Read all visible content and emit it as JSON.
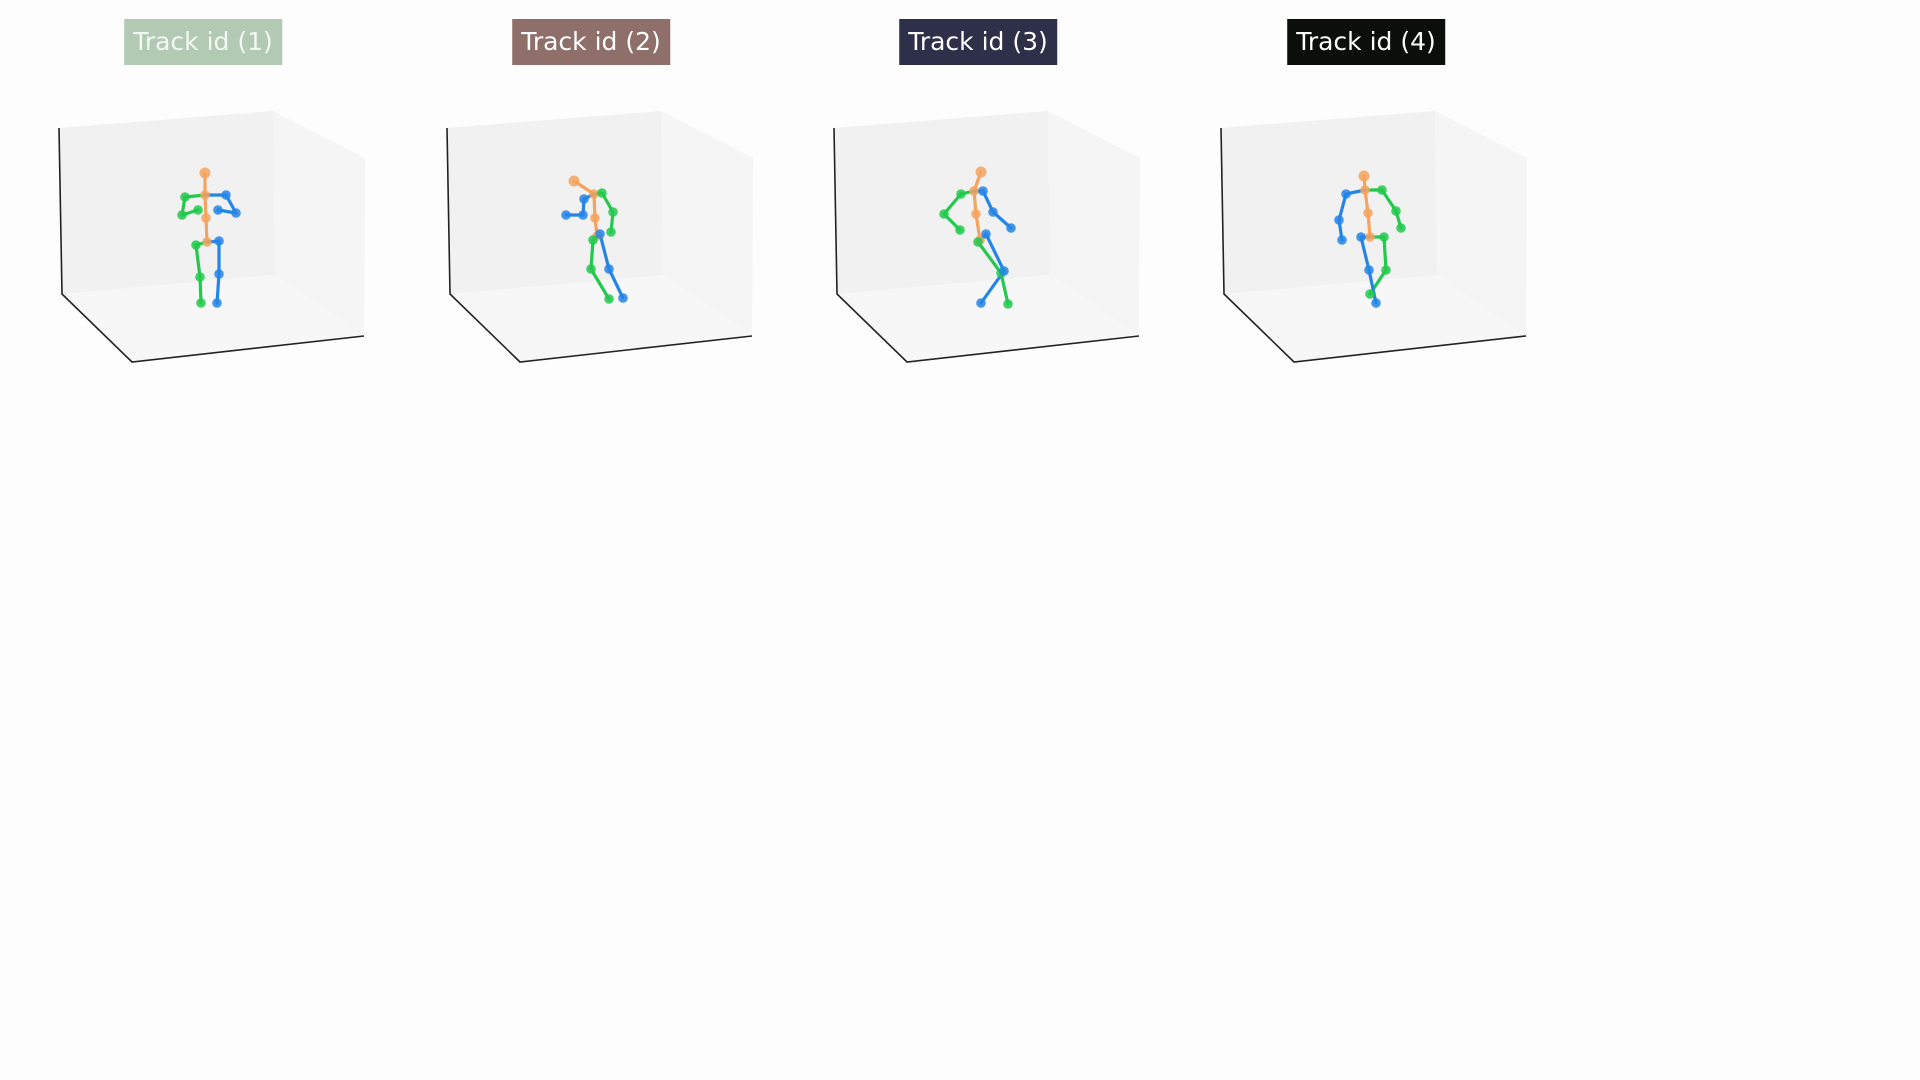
{
  "panels": [
    {
      "label": "Track id (1)",
      "label_bg": "#b2c9b3",
      "label_color": "#f4f8f4",
      "pose": {
        "head": [
          205,
          173
        ],
        "neck": [
          205,
          195
        ],
        "spine": [
          206,
          218
        ],
        "pelvis": [
          207,
          242
        ],
        "l_shoulder": [
          185,
          197
        ],
        "l_elbow": [
          182,
          215
        ],
        "l_wrist": [
          198,
          210
        ],
        "r_shoulder": [
          226,
          195
        ],
        "r_elbow": [
          236,
          213
        ],
        "r_wrist": [
          218,
          210
        ],
        "l_hip": [
          196,
          245
        ],
        "l_knee": [
          200,
          277
        ],
        "l_ankle": [
          201,
          303
        ],
        "r_hip": [
          219,
          241
        ],
        "r_knee": [
          219,
          274
        ],
        "r_ankle": [
          217,
          303
        ]
      }
    },
    {
      "label": "Track id (2)",
      "label_bg": "#8f6f69",
      "label_color": "#ffffff",
      "pose": {
        "head": [
          574,
          181
        ],
        "neck": [
          594,
          194
        ],
        "spine": [
          595,
          218
        ],
        "pelvis": [
          597,
          236
        ],
        "l_shoulder": [
          602,
          193
        ],
        "l_elbow": [
          613,
          212
        ],
        "l_wrist": [
          611,
          232
        ],
        "r_shoulder": [
          584,
          199
        ],
        "r_elbow": [
          583,
          215
        ],
        "r_wrist": [
          566,
          215
        ],
        "l_hip": [
          593,
          240
        ],
        "l_knee": [
          591,
          269
        ],
        "l_ankle": [
          609,
          299
        ],
        "r_hip": [
          600,
          234
        ],
        "r_knee": [
          609,
          269
        ],
        "r_ankle": [
          623,
          298
        ]
      }
    },
    {
      "label": "Track id (3)",
      "label_bg": "#2e3049",
      "label_color": "#ffffff",
      "pose": {
        "head": [
          981,
          172
        ],
        "neck": [
          974,
          191
        ],
        "spine": [
          976,
          214
        ],
        "pelvis": [
          980,
          240
        ],
        "l_shoulder": [
          961,
          194
        ],
        "l_elbow": [
          944,
          214
        ],
        "l_wrist": [
          960,
          230
        ],
        "r_shoulder": [
          983,
          191
        ],
        "r_elbow": [
          993,
          212
        ],
        "r_wrist": [
          1011,
          228
        ],
        "l_hip": [
          978,
          242
        ],
        "l_knee": [
          1001,
          273
        ],
        "l_ankle": [
          1008,
          304
        ],
        "r_hip": [
          986,
          234
        ],
        "r_knee": [
          1004,
          271
        ],
        "r_ankle": [
          981,
          303
        ]
      }
    },
    {
      "label": "Track id (4)",
      "label_bg": "#0a0f0b",
      "label_color": "#ffffff",
      "pose": {
        "head": [
          1364,
          176
        ],
        "neck": [
          1365,
          190
        ],
        "spine": [
          1368,
          213
        ],
        "pelvis": [
          1370,
          237
        ],
        "l_shoulder": [
          1382,
          190
        ],
        "l_elbow": [
          1396,
          211
        ],
        "l_wrist": [
          1401,
          228
        ],
        "r_shoulder": [
          1346,
          194
        ],
        "r_elbow": [
          1339,
          220
        ],
        "r_wrist": [
          1342,
          240
        ],
        "l_hip": [
          1384,
          237
        ],
        "l_knee": [
          1386,
          270
        ],
        "l_ankle": [
          1370,
          294
        ],
        "r_hip": [
          1361,
          237
        ],
        "r_knee": [
          1369,
          270
        ],
        "r_ankle": [
          1376,
          303
        ]
      }
    }
  ],
  "colors": {
    "torso": "#f6a35e",
    "left": "#22c94d",
    "right": "#2485e8",
    "axis": "#222222",
    "pane_back": "#f0f1f0",
    "pane_side": "#f4f5f4",
    "pane_floor": "#f6f7f6"
  }
}
